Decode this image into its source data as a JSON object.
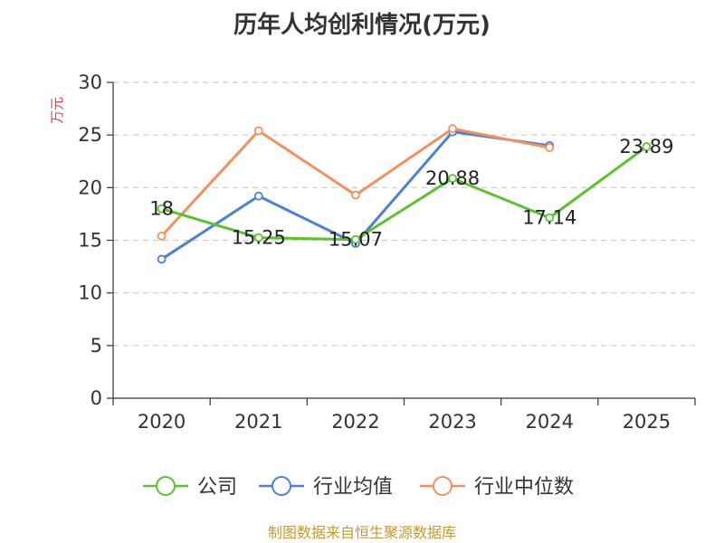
{
  "colors": {
    "company": "#5cc12e",
    "industry_avg": "#4b80d9",
    "industry_median": "#f78f5c",
    "ylabel": "#e0403f",
    "source": "#c49a2c",
    "grid": "#cccccc",
    "axis": "#333333"
  },
  "chart_data": {
    "type": "line",
    "title": "历年人均创利情况(万元)",
    "ylabel": "万元",
    "xlabel": "",
    "categories": [
      "2020",
      "2021",
      "2022",
      "2023",
      "2024",
      "2025"
    ],
    "ylim": [
      0,
      30
    ],
    "yticks": [
      0,
      5,
      10,
      15,
      20,
      25,
      30
    ],
    "grid": "horizontal-dashed",
    "legend_position": "bottom",
    "series": [
      {
        "name": "公司",
        "key": "company",
        "values": [
          18,
          15.25,
          15.07,
          20.88,
          17.14,
          23.89
        ],
        "labels": [
          "18",
          "15.25",
          "15.07",
          "20.88",
          "17.14",
          "23.89"
        ]
      },
      {
        "name": "行业均值",
        "key": "industry_avg",
        "values": [
          13.2,
          19.2,
          14.7,
          25.3,
          24.0,
          null
        ]
      },
      {
        "name": "行业中位数",
        "key": "industry_median",
        "values": [
          15.4,
          25.4,
          19.3,
          25.6,
          23.8,
          null
        ]
      }
    ]
  },
  "source_text": "制图数据来自恒生聚源数据库"
}
